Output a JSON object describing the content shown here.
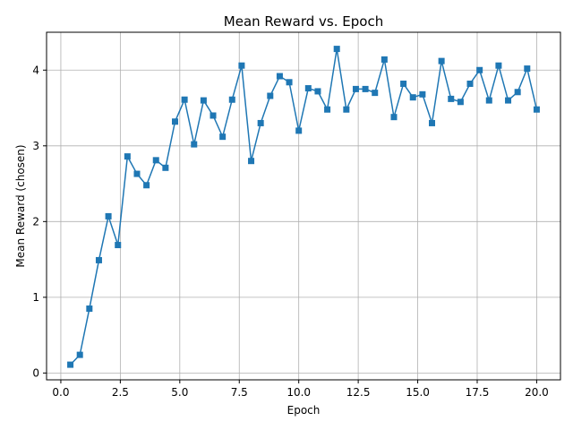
{
  "chart_data": {
    "type": "line",
    "title": "Mean Reward vs. Epoch",
    "xlabel": "Epoch",
    "ylabel": "Mean Reward (chosen)",
    "xlim": [
      -0.6,
      21.0
    ],
    "ylim": [
      -0.09,
      4.5
    ],
    "xticks": [
      0.0,
      2.5,
      5.0,
      7.5,
      10.0,
      12.5,
      15.0,
      17.5,
      20.0
    ],
    "xtick_labels": [
      "0.0",
      "2.5",
      "5.0",
      "7.5",
      "10.0",
      "12.5",
      "15.0",
      "17.5",
      "20.0"
    ],
    "yticks": [
      0,
      1,
      2,
      3,
      4
    ],
    "ytick_labels": [
      "0",
      "1",
      "2",
      "3",
      "4"
    ],
    "grid": true,
    "marker": "square",
    "color": "#1f77b4",
    "x": [
      0.4,
      0.8,
      1.2,
      1.6,
      2.0,
      2.4,
      2.8,
      3.2,
      3.6,
      4.0,
      4.4,
      4.8,
      5.2,
      5.6,
      6.0,
      6.4,
      6.8,
      7.2,
      7.6,
      8.0,
      8.4,
      8.8,
      9.2,
      9.6,
      10.0,
      10.4,
      10.8,
      11.2,
      11.6,
      12.0,
      12.4,
      12.8,
      13.2,
      13.6,
      14.0,
      14.4,
      14.8,
      15.2,
      15.6,
      16.0,
      16.4,
      16.8,
      17.2,
      17.6,
      18.0,
      18.4,
      18.8,
      19.2,
      19.6,
      20.0
    ],
    "y": [
      0.11,
      0.24,
      0.85,
      1.49,
      2.07,
      1.69,
      2.86,
      2.63,
      2.48,
      2.81,
      2.71,
      3.32,
      3.61,
      3.02,
      3.6,
      3.4,
      3.12,
      3.61,
      4.06,
      2.8,
      3.3,
      3.66,
      3.92,
      3.84,
      3.2,
      3.76,
      3.72,
      3.48,
      4.28,
      3.48,
      3.75,
      3.75,
      3.7,
      4.14,
      3.38,
      3.82,
      3.64,
      3.68,
      3.3,
      4.12,
      3.62,
      3.58,
      3.82,
      4.0,
      3.6,
      4.06,
      3.6,
      3.71,
      4.02,
      3.48
    ]
  }
}
